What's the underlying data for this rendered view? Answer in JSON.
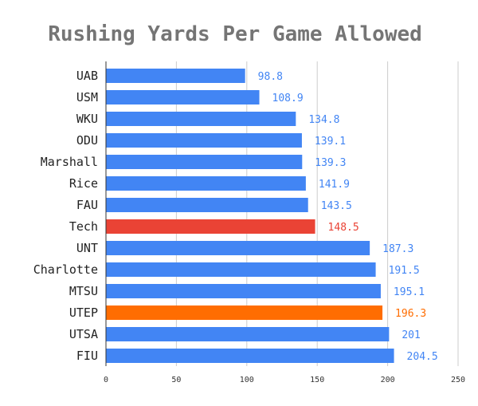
{
  "chart_data": {
    "type": "bar",
    "orientation": "horizontal",
    "title": "Rushing Yards Per Game Allowed",
    "xlabel": "",
    "ylabel": "",
    "xlim": [
      0,
      250
    ],
    "ticks": [
      "0",
      "50",
      "100",
      "150",
      "200",
      "250"
    ],
    "grid": true,
    "categories": [
      "UAB",
      "USM",
      "WKU",
      "ODU",
      "Marshall",
      "Rice",
      "FAU",
      "Tech",
      "UNT",
      "Charlotte",
      "MTSU",
      "UTEP",
      "UTSA",
      "FIU"
    ],
    "values": [
      98.8,
      108.9,
      134.8,
      139.1,
      139.3,
      141.9,
      143.5,
      148.5,
      187.3,
      191.5,
      195.1,
      196.3,
      201,
      204.5
    ],
    "value_labels": [
      "98.8",
      "108.9",
      "134.8",
      "139.1",
      "139.3",
      "141.9",
      "143.5",
      "148.5",
      "187.3",
      "191.5",
      "195.1",
      "196.3",
      "201",
      "204.5"
    ],
    "colors": {
      "default": "#4285f4",
      "highlights": {
        "Tech": "#ea4335",
        "UTEP": "#ff6d01"
      }
    }
  }
}
